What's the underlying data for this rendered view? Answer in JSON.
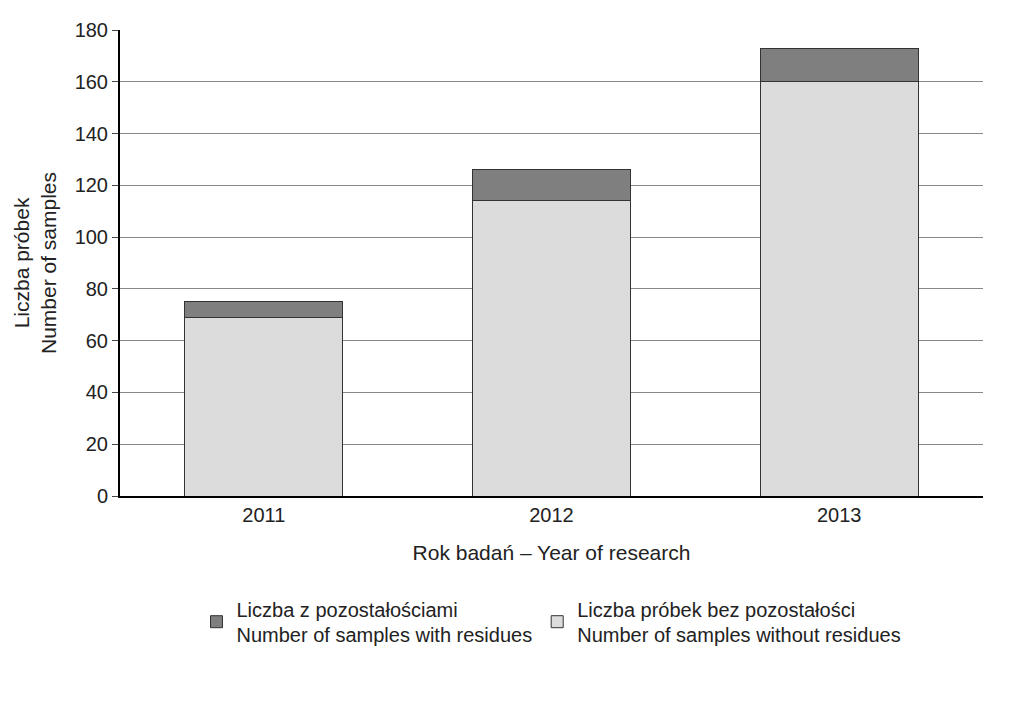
{
  "chart_data": {
    "type": "bar",
    "stacked": true,
    "x_label": "Rok badań – Year of research",
    "y_label": "Liczba próbek\nNumber of samples",
    "categories": [
      "2011",
      "2012",
      "2013"
    ],
    "series": [
      {
        "name": "Liczba próbek bez pozostałości\nNumber of samples without residues",
        "color": "#dcdcdc",
        "values": [
          69,
          114,
          160
        ]
      },
      {
        "name": "Liczba z pozostałościami\nNumber of samples with residues",
        "color": "#7f7f7f",
        "values": [
          6,
          12,
          13
        ]
      }
    ],
    "ylim": [
      0,
      180
    ],
    "yticks": [
      0,
      20,
      40,
      60,
      80,
      100,
      120,
      140,
      160,
      180
    ],
    "grid": true,
    "legend": "bottom"
  }
}
